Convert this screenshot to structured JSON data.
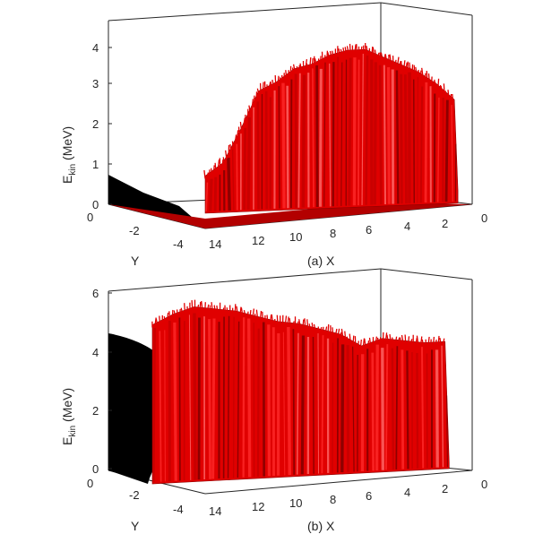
{
  "chart_data": [
    {
      "type": "surface",
      "caption": "(a) X",
      "zlabel_main": "E",
      "zlabel_sub": "kin",
      "zlabel_unit": " (MeV)",
      "ylabel": "Y",
      "x_ticks": [
        "14",
        "12",
        "10",
        "8",
        "6",
        "4",
        "2",
        "0"
      ],
      "y_ticks": [
        "0",
        "-2",
        "-4"
      ],
      "z_ticks": [
        "0",
        "1",
        "2",
        "3",
        "4"
      ],
      "xlim": [
        0,
        15
      ],
      "ylim": [
        -4.5,
        0
      ],
      "zlim": [
        0,
        4.5
      ],
      "surface_color": "#e00000",
      "shadow_color": "#000000",
      "envelope": {
        "x": [
          15,
          14,
          13,
          12,
          11,
          10,
          9,
          8,
          7,
          6,
          5,
          4,
          3,
          2,
          1,
          0.8
        ],
        "z": [
          0.9,
          1.2,
          2.0,
          2.9,
          3.1,
          3.4,
          3.5,
          3.7,
          3.8,
          3.8,
          3.6,
          3.4,
          3.2,
          2.9,
          2.5,
          0.3
        ]
      }
    },
    {
      "type": "surface",
      "caption": "(b) X",
      "zlabel_main": "E",
      "zlabel_sub": "kin",
      "zlabel_unit": " (MeV)",
      "ylabel": "Y",
      "x_ticks": [
        "14",
        "12",
        "10",
        "8",
        "6",
        "4",
        "2",
        "0"
      ],
      "y_ticks": [
        "0",
        "-2",
        "-4"
      ],
      "z_ticks": [
        "0",
        "2",
        "4",
        "6"
      ],
      "xlim": [
        0,
        15
      ],
      "ylim": [
        -4.5,
        0
      ],
      "zlim": [
        0,
        6
      ],
      "surface_color": "#e00000",
      "shadow_color": "#000000",
      "envelope": {
        "x": [
          15,
          14,
          13,
          12,
          11,
          10,
          9,
          8,
          7,
          6,
          5,
          4,
          3,
          2,
          1,
          0.8
        ],
        "z": [
          5.0,
          5.3,
          5.5,
          5.4,
          5.3,
          5.1,
          4.9,
          4.8,
          4.6,
          4.4,
          4.0,
          4.2,
          4.1,
          4.0,
          4.0,
          0.2
        ]
      }
    }
  ]
}
